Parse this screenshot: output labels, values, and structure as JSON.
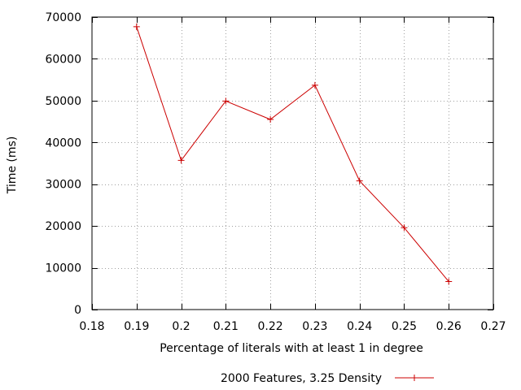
{
  "chart_data": {
    "type": "line",
    "title": "",
    "xlabel": "Percentage of literals with at least 1 in degree",
    "ylabel": "Time (ms)",
    "xlim": [
      0.18,
      0.27
    ],
    "ylim": [
      0,
      70000
    ],
    "xticks": [
      "0.18",
      "0.19",
      "0.2",
      "0.21",
      "0.22",
      "0.23",
      "0.24",
      "0.25",
      "0.26",
      "0.27"
    ],
    "yticks": [
      "0",
      "10000",
      "20000",
      "30000",
      "40000",
      "50000",
      "60000",
      "70000"
    ],
    "xtick_values": [
      0.18,
      0.19,
      0.2,
      0.21,
      0.22,
      0.23,
      0.24,
      0.25,
      0.26,
      0.27
    ],
    "ytick_values": [
      0,
      10000,
      20000,
      30000,
      40000,
      50000,
      60000,
      70000
    ],
    "grid": true,
    "legend_position": "bottom-center",
    "series": [
      {
        "name": "2000 Features, 3.25 Density",
        "color": "#cc0000",
        "marker": "plus",
        "x": [
          0.19,
          0.2,
          0.21,
          0.22,
          0.23,
          0.24,
          0.25,
          0.26
        ],
        "y": [
          67700,
          35700,
          49900,
          45500,
          53700,
          30800,
          19600,
          6700
        ]
      }
    ]
  }
}
